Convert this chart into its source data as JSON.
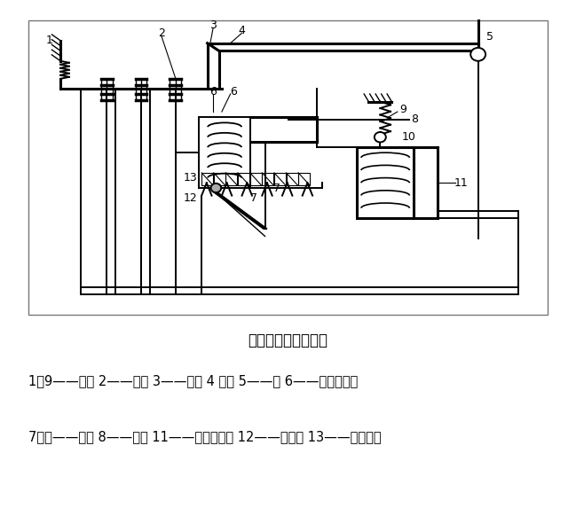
{
  "title": "空气断路器的原理图",
  "legend_line1": "1、9——绷簧 2——触点 3——锁键 4 搭钩 5——轴 6——过流脱扣器",
  "legend_line2": "7、十——衔铁 8——杠杆 11——欠压脱扣器 12——电阻丝 13——双金属片",
  "bg_color": "#ffffff",
  "line_color": "#000000",
  "lw": 1.4,
  "lw2": 2.2,
  "font_size_title": 12,
  "font_size_legend": 10.5,
  "font_size_label": 9
}
